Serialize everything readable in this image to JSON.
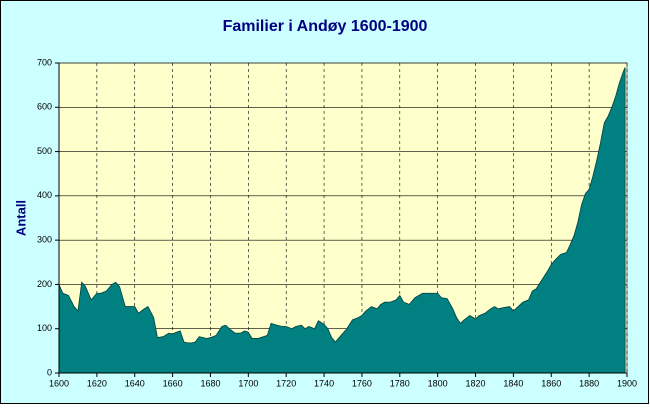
{
  "chart_data": {
    "type": "area",
    "title": "Familier i Andøy 1600-1900",
    "y_label": "Antall",
    "color": "#008080",
    "x": [
      1600,
      1602,
      1605,
      1608,
      1610,
      1612,
      1614,
      1617,
      1620,
      1622,
      1625,
      1628,
      1630,
      1632,
      1635,
      1638,
      1640,
      1642,
      1645,
      1647,
      1650,
      1652,
      1655,
      1658,
      1660,
      1662,
      1664,
      1666,
      1668,
      1670,
      1672,
      1674,
      1676,
      1678,
      1680,
      1683,
      1686,
      1688,
      1690,
      1693,
      1696,
      1698,
      1700,
      1702,
      1705,
      1708,
      1710,
      1712,
      1715,
      1718,
      1720,
      1723,
      1725,
      1728,
      1730,
      1732,
      1735,
      1737,
      1740,
      1742,
      1744,
      1746,
      1748,
      1750,
      1752,
      1755,
      1758,
      1760,
      1762,
      1765,
      1768,
      1770,
      1772,
      1775,
      1778,
      1780,
      1782,
      1785,
      1788,
      1790,
      1792,
      1795,
      1798,
      1800,
      1802,
      1805,
      1808,
      1810,
      1812,
      1814,
      1817,
      1820,
      1822,
      1825,
      1828,
      1830,
      1832,
      1835,
      1838,
      1840,
      1842,
      1845,
      1848,
      1850,
      1852,
      1855,
      1858,
      1860,
      1862,
      1865,
      1868,
      1870,
      1872,
      1874,
      1876,
      1878,
      1880,
      1882,
      1884,
      1886,
      1888,
      1890,
      1892,
      1894,
      1896,
      1898,
      1899
    ],
    "values": [
      200,
      180,
      175,
      150,
      140,
      205,
      195,
      165,
      180,
      180,
      185,
      200,
      205,
      195,
      150,
      150,
      150,
      135,
      145,
      150,
      125,
      80,
      82,
      90,
      88,
      92,
      95,
      70,
      68,
      68,
      70,
      82,
      80,
      78,
      80,
      85,
      105,
      108,
      100,
      90,
      90,
      95,
      92,
      78,
      78,
      82,
      85,
      112,
      108,
      105,
      105,
      100,
      105,
      108,
      100,
      105,
      100,
      118,
      110,
      100,
      80,
      70,
      80,
      90,
      100,
      120,
      125,
      130,
      140,
      150,
      145,
      155,
      160,
      160,
      165,
      175,
      160,
      155,
      170,
      175,
      180,
      180,
      180,
      180,
      170,
      168,
      145,
      125,
      112,
      120,
      130,
      122,
      130,
      135,
      145,
      150,
      145,
      148,
      150,
      140,
      148,
      160,
      165,
      185,
      190,
      210,
      230,
      245,
      255,
      268,
      272,
      290,
      310,
      340,
      380,
      405,
      415,
      445,
      480,
      520,
      565,
      580,
      600,
      625,
      655,
      680,
      690
    ],
    "xlim": [
      1600,
      1900
    ],
    "ylim": [
      0,
      700
    ],
    "xticks": [
      1600,
      1620,
      1640,
      1660,
      1680,
      1700,
      1720,
      1740,
      1760,
      1780,
      1800,
      1820,
      1840,
      1860,
      1880,
      1900
    ],
    "yticks": [
      0,
      100,
      200,
      300,
      400,
      500,
      600,
      700
    ],
    "grid": true
  }
}
